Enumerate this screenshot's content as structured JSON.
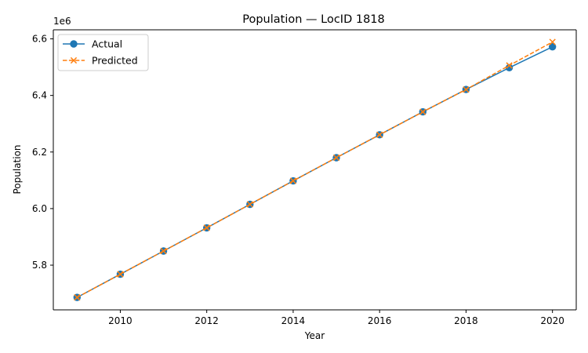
{
  "chart_data": {
    "type": "line",
    "title": "Population — LocID 1818",
    "xlabel": "Year",
    "ylabel": "Population",
    "y_offset_label": "1e6",
    "x": [
      2009,
      2010,
      2011,
      2012,
      2013,
      2014,
      2015,
      2016,
      2017,
      2018,
      2019,
      2020
    ],
    "xlim": [
      2008.45,
      2020.55
    ],
    "ylim": [
      5.642,
      6.632
    ],
    "x_ticks": [
      2010,
      2012,
      2014,
      2016,
      2018,
      2020
    ],
    "y_ticks": [
      5.8,
      6.0,
      6.2,
      6.4,
      6.6
    ],
    "grid": false,
    "legend_position": "top-left",
    "series": [
      {
        "name": "Actual",
        "color": "#1f77b4",
        "marker": "circle",
        "line_style": "solid",
        "values": [
          5.686,
          5.768,
          5.85,
          5.932,
          6.015,
          6.098,
          6.18,
          6.261,
          6.342,
          6.421,
          6.498,
          6.572
        ]
      },
      {
        "name": "Predicted",
        "color": "#ff7f0e",
        "marker": "x",
        "line_style": "dashed",
        "values": [
          5.686,
          5.768,
          5.85,
          5.932,
          6.015,
          6.098,
          6.18,
          6.261,
          6.342,
          6.421,
          6.506,
          6.589
        ]
      }
    ]
  }
}
